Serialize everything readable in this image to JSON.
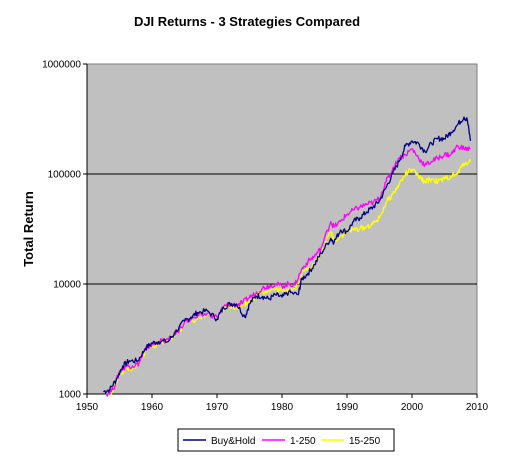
{
  "chart_data": {
    "type": "line",
    "title": "DJI Returns - 3 Strategies Compared",
    "xlabel": "",
    "ylabel": "Total Return",
    "y_scale": "log",
    "xlim": [
      1950,
      2010
    ],
    "ylim": [
      1000,
      1000000
    ],
    "x_ticks": [
      "1950",
      "1960",
      "1970",
      "1980",
      "1990",
      "2000",
      "2010"
    ],
    "y_ticks": [
      "1000",
      "10000",
      "100000",
      "1000000"
    ],
    "grid": "horizontal major gridlines",
    "legend_position": "bottom",
    "plot_background": "#c0c0c0",
    "series": [
      {
        "name": "Buy&Hold",
        "color": "#000080",
        "x": [
          1952.5,
          1953.5,
          1954.5,
          1955.5,
          1956.5,
          1957.8,
          1959,
          1960,
          1961,
          1962.5,
          1963.5,
          1965,
          1966,
          1967,
          1968.5,
          1970,
          1971,
          1972,
          1973,
          1974.3,
          1975,
          1976,
          1977,
          1978,
          1979,
          1980,
          1981,
          1982.5,
          1983,
          1984,
          1985,
          1986,
          1987.5,
          1988,
          1989,
          1990,
          1991,
          1992,
          1993,
          1994,
          1995,
          1996,
          1997,
          1998,
          1999,
          2000,
          2001,
          2002,
          2003,
          2004,
          2005,
          2006,
          2007,
          2008,
          2008.5,
          2009
        ],
        "y": [
          1050,
          1100,
          1350,
          1800,
          2000,
          2000,
          2600,
          2900,
          3000,
          3000,
          3600,
          4600,
          5000,
          5500,
          5700,
          4800,
          6100,
          6600,
          6600,
          5000,
          6600,
          7800,
          7700,
          7300,
          8000,
          7600,
          8400,
          8000,
          11000,
          12500,
          15000,
          19000,
          26000,
          24000,
          31000,
          30000,
          37000,
          40000,
          45000,
          50000,
          57000,
          75000,
          100000,
          130000,
          180000,
          200000,
          190000,
          160000,
          190000,
          210000,
          210000,
          240000,
          280000,
          330000,
          310000,
          200000
        ]
      },
      {
        "name": "1-250",
        "color": "#ff00ff",
        "x": [
          1953,
          1954,
          1955,
          1956,
          1957,
          1958,
          1959,
          1960,
          1961,
          1962.5,
          1964,
          1965,
          1967,
          1968.5,
          1970,
          1971,
          1972,
          1973,
          1974,
          1975,
          1976,
          1977,
          1978,
          1979,
          1980,
          1981,
          1982,
          1983,
          1984,
          1985,
          1986,
          1987.5,
          1988,
          1989,
          1990,
          1991,
          1992,
          1993,
          1994,
          1995,
          1996,
          1997,
          1998,
          1999,
          2000,
          2001,
          2002,
          2003,
          2004,
          2005,
          2006,
          2007,
          2008,
          2009
        ],
        "y": [
          1000,
          1100,
          1600,
          1800,
          1800,
          1900,
          2600,
          2800,
          3000,
          3100,
          3700,
          4500,
          5000,
          5400,
          5000,
          6200,
          6600,
          6400,
          6800,
          7600,
          8200,
          9200,
          9600,
          10000,
          9600,
          10000,
          9800,
          13500,
          16000,
          18000,
          21000,
          37000,
          33000,
          37000,
          43000,
          47000,
          50000,
          53000,
          55000,
          60000,
          85000,
          110000,
          140000,
          150000,
          170000,
          140000,
          120000,
          130000,
          140000,
          150000,
          150000,
          180000,
          170000,
          170000
        ]
      },
      {
        "name": "15-250",
        "color": "#ffff00",
        "x": [
          1953,
          1954,
          1955,
          1956,
          1957,
          1958,
          1959,
          1960,
          1961,
          1962.5,
          1964,
          1965,
          1967,
          1968.5,
          1970,
          1971,
          1972,
          1973,
          1974,
          1975,
          1976,
          1977,
          1978,
          1979,
          1980,
          1981,
          1982,
          1983,
          1984,
          1985,
          1986,
          1987.5,
          1988,
          1989,
          1990,
          1991,
          1992,
          1993,
          1994,
          1995,
          1996,
          1997,
          1998,
          1999,
          2000,
          2001,
          2002,
          2003,
          2004,
          2005,
          2006,
          2007,
          2008,
          2009
        ],
        "y": [
          1000,
          1050,
          1500,
          1700,
          1700,
          1850,
          2500,
          2700,
          2900,
          3100,
          3600,
          4400,
          4800,
          5200,
          4900,
          6000,
          6300,
          6100,
          6400,
          7100,
          7700,
          8500,
          8700,
          9000,
          8600,
          9000,
          9000,
          12500,
          14000,
          15000,
          19000,
          30000,
          25000,
          27000,
          30000,
          31000,
          32000,
          33000,
          35000,
          40000,
          55000,
          65000,
          80000,
          100000,
          110000,
          95000,
          85000,
          90000,
          85000,
          90000,
          95000,
          100000,
          125000,
          130000
        ]
      }
    ]
  }
}
